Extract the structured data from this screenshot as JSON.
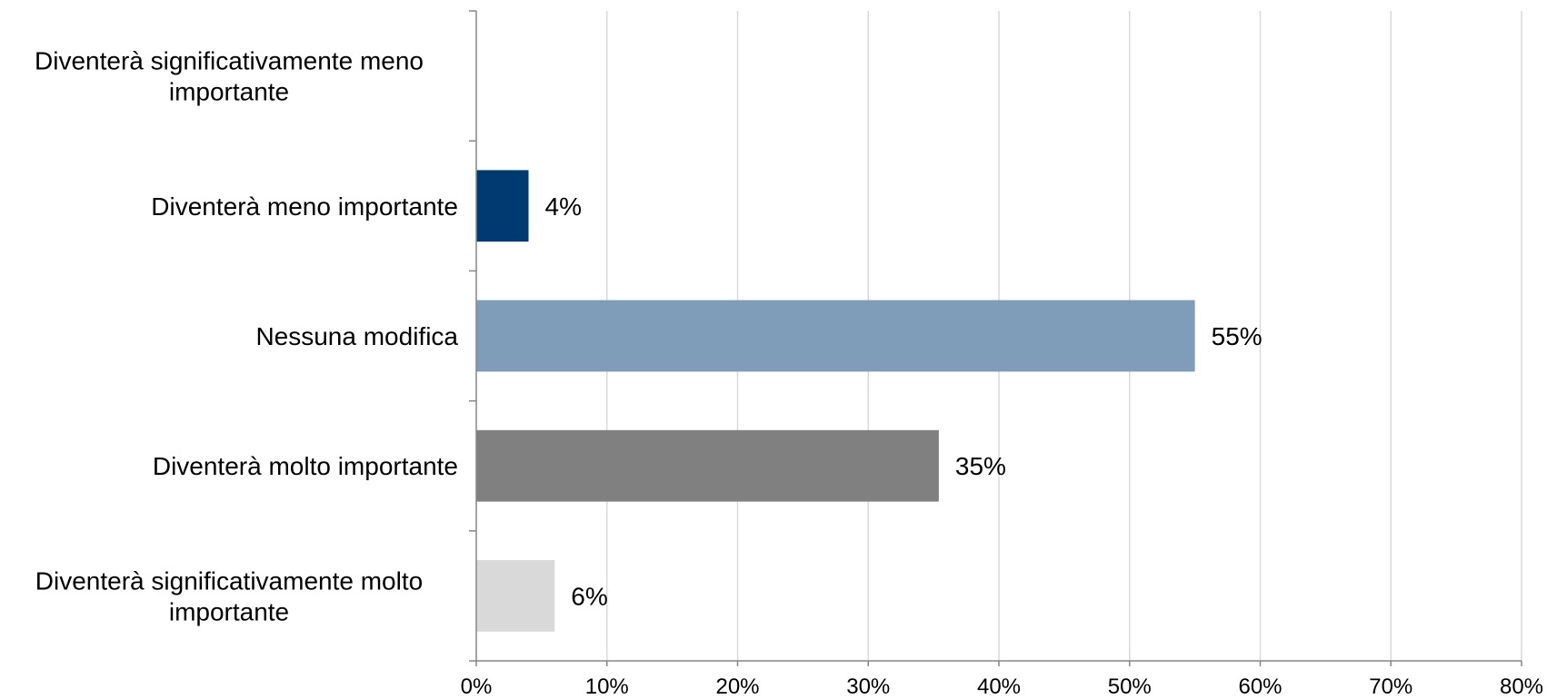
{
  "chart_data": {
    "type": "bar",
    "orientation": "horizontal",
    "categories": [
      "Diventerà significativamente meno importante",
      "Diventerà meno importante",
      "Nessuna modifica",
      "Diventerà molto importante",
      "Diventerà significativamente molto importante"
    ],
    "category_label_lines": [
      [
        "Diventerà significativamente meno",
        "importante"
      ],
      [
        "Diventerà meno importante"
      ],
      [
        "Nessuna modifica"
      ],
      [
        "Diventerà molto importante"
      ],
      [
        "Diventerà significativamente molto",
        "importante"
      ]
    ],
    "values": [
      0,
      4,
      55,
      35.4,
      6
    ],
    "data_labels": [
      "",
      "4%",
      "55%",
      "35%",
      "6%"
    ],
    "colors": [
      "#ffffff",
      "#003a70",
      "#7f9db9",
      "#808080",
      "#d9d9d9"
    ],
    "xlim": [
      0,
      80
    ],
    "xticks": [
      0,
      10,
      20,
      30,
      40,
      50,
      60,
      70,
      80
    ],
    "xtick_labels": [
      "0%",
      "10%",
      "20%",
      "30%",
      "40%",
      "50%",
      "60%",
      "70%",
      "80%"
    ],
    "grid": "vertical",
    "legend": "none",
    "title": "",
    "xlabel": "",
    "ylabel": ""
  }
}
